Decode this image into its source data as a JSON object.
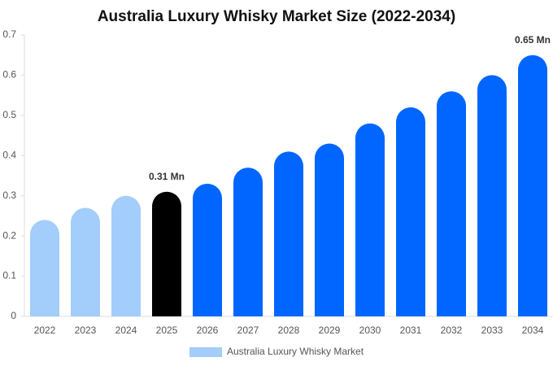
{
  "chart_data": {
    "type": "bar",
    "title": "Australia Luxury Whisky Market Size (2022-2034)",
    "categories": [
      "2022",
      "2023",
      "2024",
      "2025",
      "2026",
      "2027",
      "2028",
      "2029",
      "2030",
      "2031",
      "2032",
      "2033",
      "2034"
    ],
    "series": [
      {
        "name": "Australia Luxury Whisky Market",
        "color": "#a3cdfb",
        "values": [
          0.24,
          0.27,
          0.3,
          0.31,
          0.33,
          0.37,
          0.41,
          0.43,
          0.48,
          0.52,
          0.56,
          0.6,
          0.65
        ],
        "value_labels": [
          null,
          null,
          null,
          "0.31 Mn",
          null,
          null,
          null,
          null,
          null,
          null,
          null,
          null,
          "0.65 Mn"
        ],
        "colors": [
          "#a3cdfb",
          "#a3cdfb",
          "#a3cdfb",
          "#000000",
          "#0066ff",
          "#0066ff",
          "#0066ff",
          "#0066ff",
          "#0066ff",
          "#0066ff",
          "#0066ff",
          "#0066ff",
          "#0066ff"
        ]
      }
    ],
    "ylim": [
      0,
      0.7
    ],
    "yticks": [
      0,
      0.1,
      0.2,
      0.3,
      0.4,
      0.5,
      0.6,
      0.7
    ],
    "grid": false,
    "legend": "bottom"
  }
}
